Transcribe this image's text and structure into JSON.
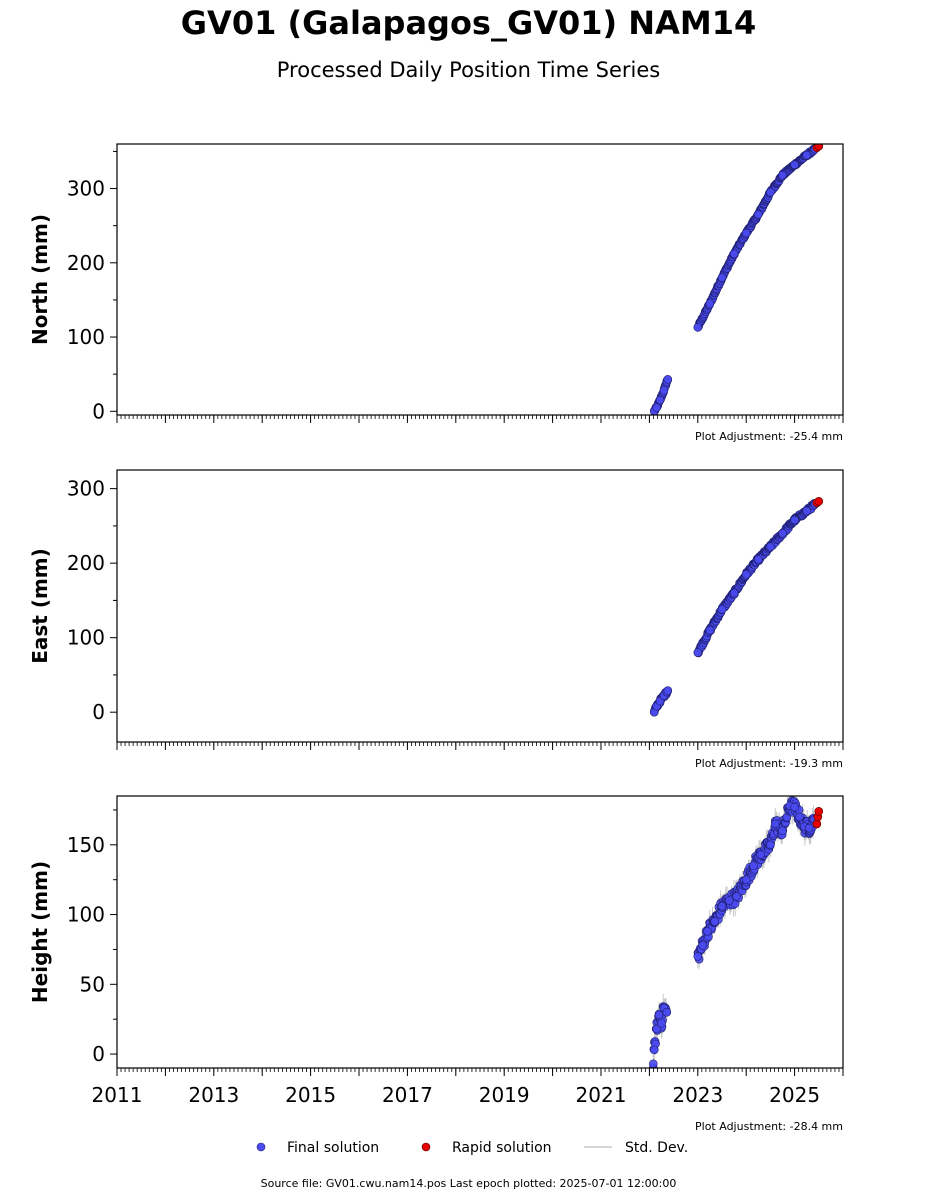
{
  "page": {
    "title": "GV01 (Galapagos_GV01) NAM14",
    "subtitle": "Processed Daily Position Time Series",
    "footer": "Source file: GV01.cwu.nam14.pos  Last epoch plotted: 2025-07-01 12:00:00"
  },
  "chart_data": [
    {
      "type": "scatter",
      "ylabel": "North (mm)",
      "ylim": [
        -5,
        360
      ],
      "yticks": [
        0,
        100,
        200,
        300
      ],
      "xlim": [
        2011.0,
        2026.0
      ],
      "xticks": [
        2011,
        2013,
        2015,
        2017,
        2019,
        2021,
        2023,
        2025
      ],
      "show_xtick_labels": false,
      "adjustment": "Plot Adjustment: -25.4 mm",
      "final_solution": [
        [
          2022.1,
          0
        ],
        [
          2022.15,
          5
        ],
        [
          2022.22,
          15
        ],
        [
          2022.3,
          28
        ],
        [
          2022.36,
          40
        ],
        [
          2022.38,
          43
        ],
        [
          2023.0,
          113
        ],
        [
          2023.25,
          145
        ],
        [
          2023.5,
          180
        ],
        [
          2023.75,
          212
        ],
        [
          2024.0,
          240
        ],
        [
          2024.25,
          265
        ],
        [
          2024.5,
          295
        ],
        [
          2024.75,
          318
        ],
        [
          2025.0,
          332
        ],
        [
          2025.25,
          345
        ],
        [
          2025.42,
          353
        ]
      ],
      "rapid_solution": [
        [
          2025.46,
          355
        ],
        [
          2025.5,
          357
        ]
      ],
      "std_dev_band": 2
    },
    {
      "type": "scatter",
      "ylabel": "East (mm)",
      "ylim": [
        -40,
        325
      ],
      "yticks": [
        0,
        100,
        200,
        300
      ],
      "xlim": [
        2011.0,
        2026.0
      ],
      "xticks": [
        2011,
        2013,
        2015,
        2017,
        2019,
        2021,
        2023,
        2025
      ],
      "show_xtick_labels": false,
      "adjustment": "Plot Adjustment: -19.3 mm",
      "final_solution": [
        [
          2022.1,
          0
        ],
        [
          2022.15,
          8
        ],
        [
          2022.22,
          15
        ],
        [
          2022.3,
          22
        ],
        [
          2022.36,
          27
        ],
        [
          2022.38,
          29
        ],
        [
          2023.0,
          80
        ],
        [
          2023.25,
          110
        ],
        [
          2023.5,
          138
        ],
        [
          2023.75,
          160
        ],
        [
          2024.0,
          185
        ],
        [
          2024.25,
          205
        ],
        [
          2024.5,
          222
        ],
        [
          2024.75,
          240
        ],
        [
          2025.0,
          258
        ],
        [
          2025.25,
          270
        ],
        [
          2025.42,
          279
        ]
      ],
      "rapid_solution": [
        [
          2025.46,
          281
        ],
        [
          2025.5,
          283
        ]
      ],
      "std_dev_band": 3
    },
    {
      "type": "scatter",
      "ylabel": "Height (mm)",
      "ylim": [
        -10,
        185
      ],
      "yticks": [
        0,
        50,
        100,
        150
      ],
      "xlim": [
        2011.0,
        2026.0
      ],
      "xticks": [
        2011,
        2013,
        2015,
        2017,
        2019,
        2021,
        2023,
        2025
      ],
      "show_xtick_labels": true,
      "adjustment": "Plot Adjustment: -28.4 mm",
      "final_solution": [
        [
          2022.08,
          -7
        ],
        [
          2022.1,
          3
        ],
        [
          2022.15,
          18
        ],
        [
          2022.2,
          28
        ],
        [
          2022.25,
          22
        ],
        [
          2022.3,
          33
        ],
        [
          2022.36,
          30
        ],
        [
          2023.0,
          70
        ],
        [
          2023.1,
          78
        ],
        [
          2023.2,
          88
        ],
        [
          2023.35,
          95
        ],
        [
          2023.5,
          106
        ],
        [
          2023.65,
          110
        ],
        [
          2023.8,
          113
        ],
        [
          2024.0,
          125
        ],
        [
          2024.15,
          135
        ],
        [
          2024.3,
          143
        ],
        [
          2024.5,
          150
        ],
        [
          2024.6,
          165
        ],
        [
          2024.75,
          160
        ],
        [
          2024.9,
          178
        ],
        [
          2025.0,
          177
        ],
        [
          2025.1,
          170
        ],
        [
          2025.2,
          163
        ],
        [
          2025.3,
          162
        ],
        [
          2025.4,
          168
        ]
      ],
      "rapid_solution": [
        [
          2025.46,
          165
        ],
        [
          2025.48,
          170
        ],
        [
          2025.5,
          174
        ]
      ],
      "std_dev_band": 6
    }
  ],
  "legend": {
    "placement": "bottom",
    "final_label": "Final solution",
    "rapid_label": "Rapid solution",
    "std_label": "Std. Dev."
  },
  "colors": {
    "final": "#4b4bf2",
    "final_edge": "#1e1e6e",
    "rapid": "#e60000",
    "std": "#c8c8c8"
  }
}
